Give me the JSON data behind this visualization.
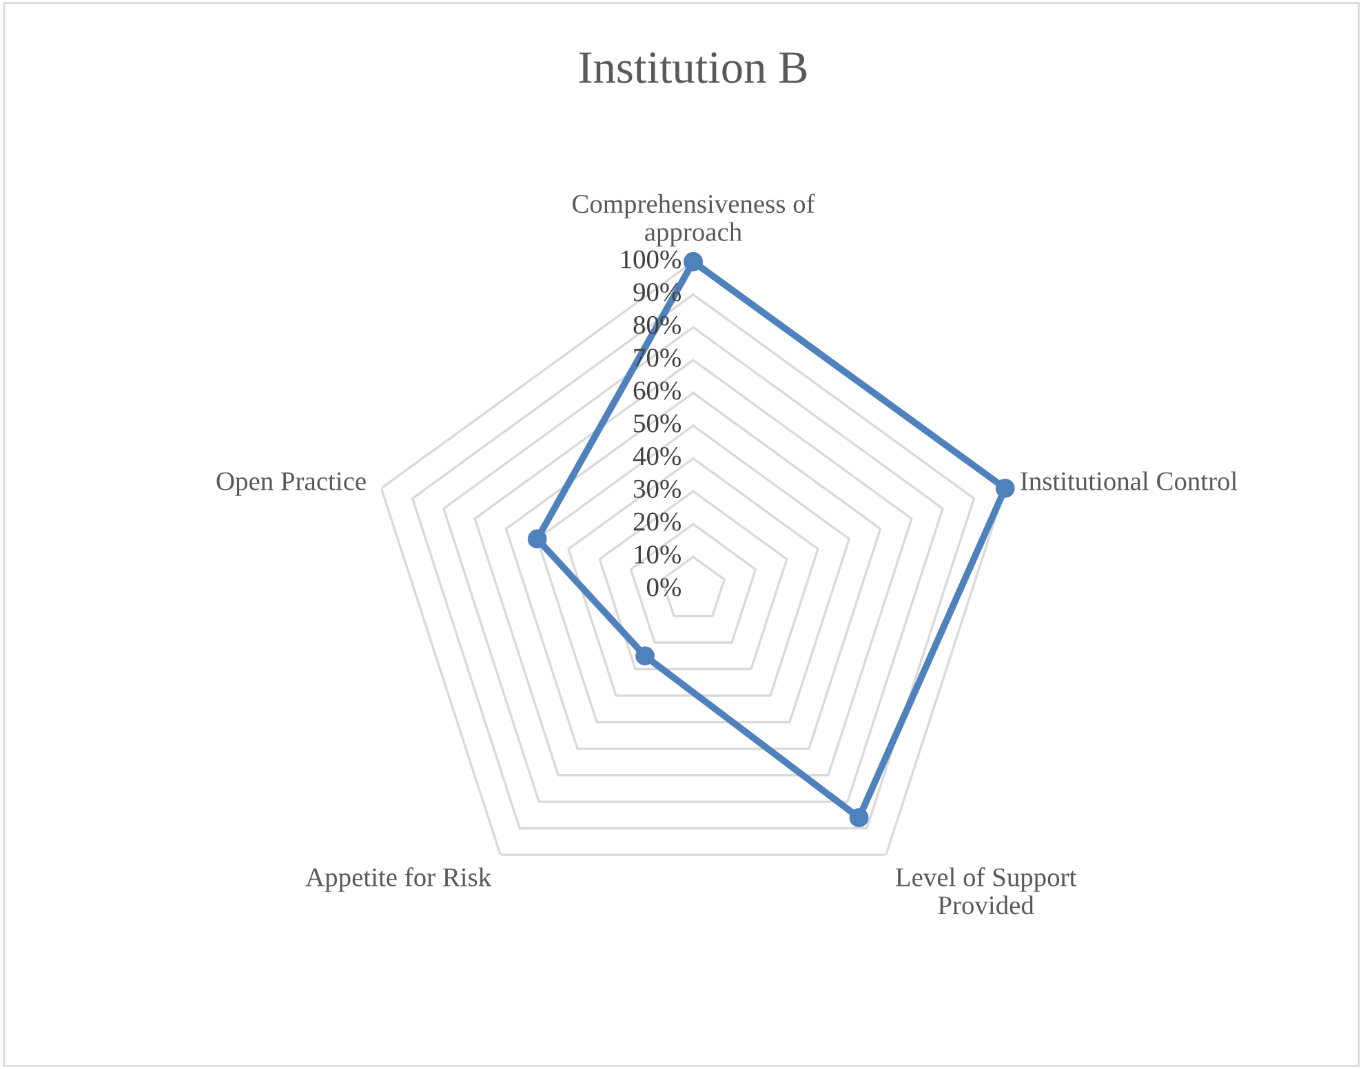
{
  "chart_data": {
    "type": "radar",
    "title": "Institution B",
    "categories": [
      "Comprehensiveness of\napproach",
      "Institutional Control",
      "Level of Support\nProvided",
      "Appetite for Risk",
      "Open Practice"
    ],
    "series": [
      {
        "color": "#4f81bd",
        "values": [
          100,
          100,
          86,
          25,
          50
        ]
      }
    ],
    "ylim": [
      0,
      100
    ],
    "yticks": [
      {
        "value": 0,
        "label": "0%"
      },
      {
        "value": 10,
        "label": "10%"
      },
      {
        "value": 20,
        "label": "20%"
      },
      {
        "value": 30,
        "label": "30%"
      },
      {
        "value": 40,
        "label": "40%"
      },
      {
        "value": 50,
        "label": "50%"
      },
      {
        "value": 60,
        "label": "60%"
      },
      {
        "value": 70,
        "label": "70%"
      },
      {
        "value": 80,
        "label": "80%"
      },
      {
        "value": 90,
        "label": "90%"
      },
      {
        "value": 100,
        "label": "100%"
      }
    ],
    "grid": true,
    "marker": "circle",
    "line_style": "solid"
  }
}
